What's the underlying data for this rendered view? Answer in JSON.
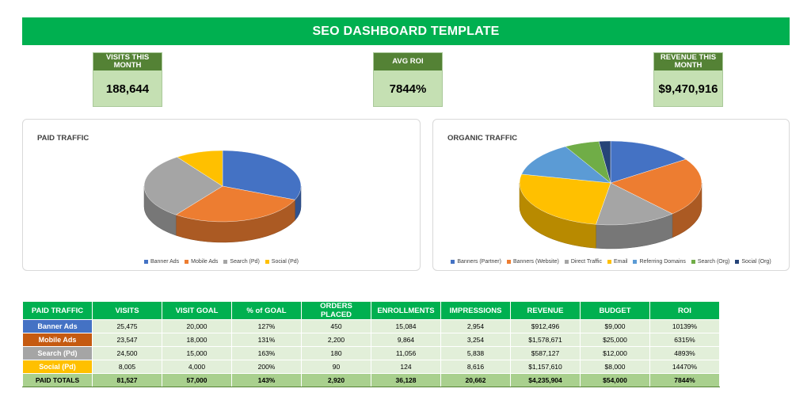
{
  "header": {
    "title": "SEO DASHBOARD TEMPLATE"
  },
  "kpis": [
    {
      "label": "VISITS THIS MONTH",
      "value": "188,644"
    },
    {
      "label": "AVG ROI",
      "value": "7844%"
    },
    {
      "label": "REVENUE THIS MONTH",
      "value": "$9,470,916"
    }
  ],
  "chart_data": [
    {
      "type": "pie",
      "title": "PAID TRAFFIC",
      "categories": [
        "Banner Ads",
        "Mobile Ads",
        "Search (Pd)",
        "Social (Pd)"
      ],
      "values": [
        25475,
        23547,
        24500,
        8005
      ],
      "colors": [
        "#4472c4",
        "#ed7d31",
        "#a5a5a5",
        "#ffc000"
      ],
      "legend": "bottom"
    },
    {
      "type": "pie",
      "title": "ORGANIC TRAFFIC",
      "categories": [
        "Banners (Partner)",
        "Banners (Website)",
        "Direct Traffic",
        "Email",
        "Referring Domains",
        "Search (Org)",
        "Social (Org)"
      ],
      "values": [
        15,
        22,
        14,
        25,
        13,
        6,
        2
      ],
      "colors": [
        "#4472c4",
        "#ed7d31",
        "#a5a5a5",
        "#ffc000",
        "#5b9bd5",
        "#70ad47",
        "#264478"
      ],
      "legend": "bottom"
    }
  ],
  "table": {
    "headers": [
      "PAID TRAFFIC",
      "VISITS",
      "VISIT GOAL",
      "% of GOAL",
      "ORDERS PLACED",
      "ENROLLMENTS",
      "IMPRESSIONS",
      "REVENUE",
      "BUDGET",
      "ROI"
    ],
    "rows": [
      {
        "label": "Banner Ads",
        "color": "#4472c4",
        "cells": [
          "25,475",
          "20,000",
          "127%",
          "450",
          "15,084",
          "2,954",
          "$912,496",
          "$9,000",
          "10139%"
        ]
      },
      {
        "label": "Mobile Ads",
        "color": "#c55a11",
        "cells": [
          "23,547",
          "18,000",
          "131%",
          "2,200",
          "9,864",
          "3,254",
          "$1,578,671",
          "$25,000",
          "6315%"
        ]
      },
      {
        "label": "Search (Pd)",
        "color": "#a5a5a5",
        "cells": [
          "24,500",
          "15,000",
          "163%",
          "180",
          "11,056",
          "5,838",
          "$587,127",
          "$12,000",
          "4893%"
        ]
      },
      {
        "label": "Social (Pd)",
        "color": "#ffc000",
        "cells": [
          "8,005",
          "4,000",
          "200%",
          "90",
          "124",
          "8,616",
          "$1,157,610",
          "$8,000",
          "14470%"
        ]
      }
    ],
    "totals": {
      "label": "PAID TOTALS",
      "cells": [
        "81,527",
        "57,000",
        "143%",
        "2,920",
        "36,128",
        "20,662",
        "$4,235,904",
        "$54,000",
        "7844%"
      ]
    }
  }
}
